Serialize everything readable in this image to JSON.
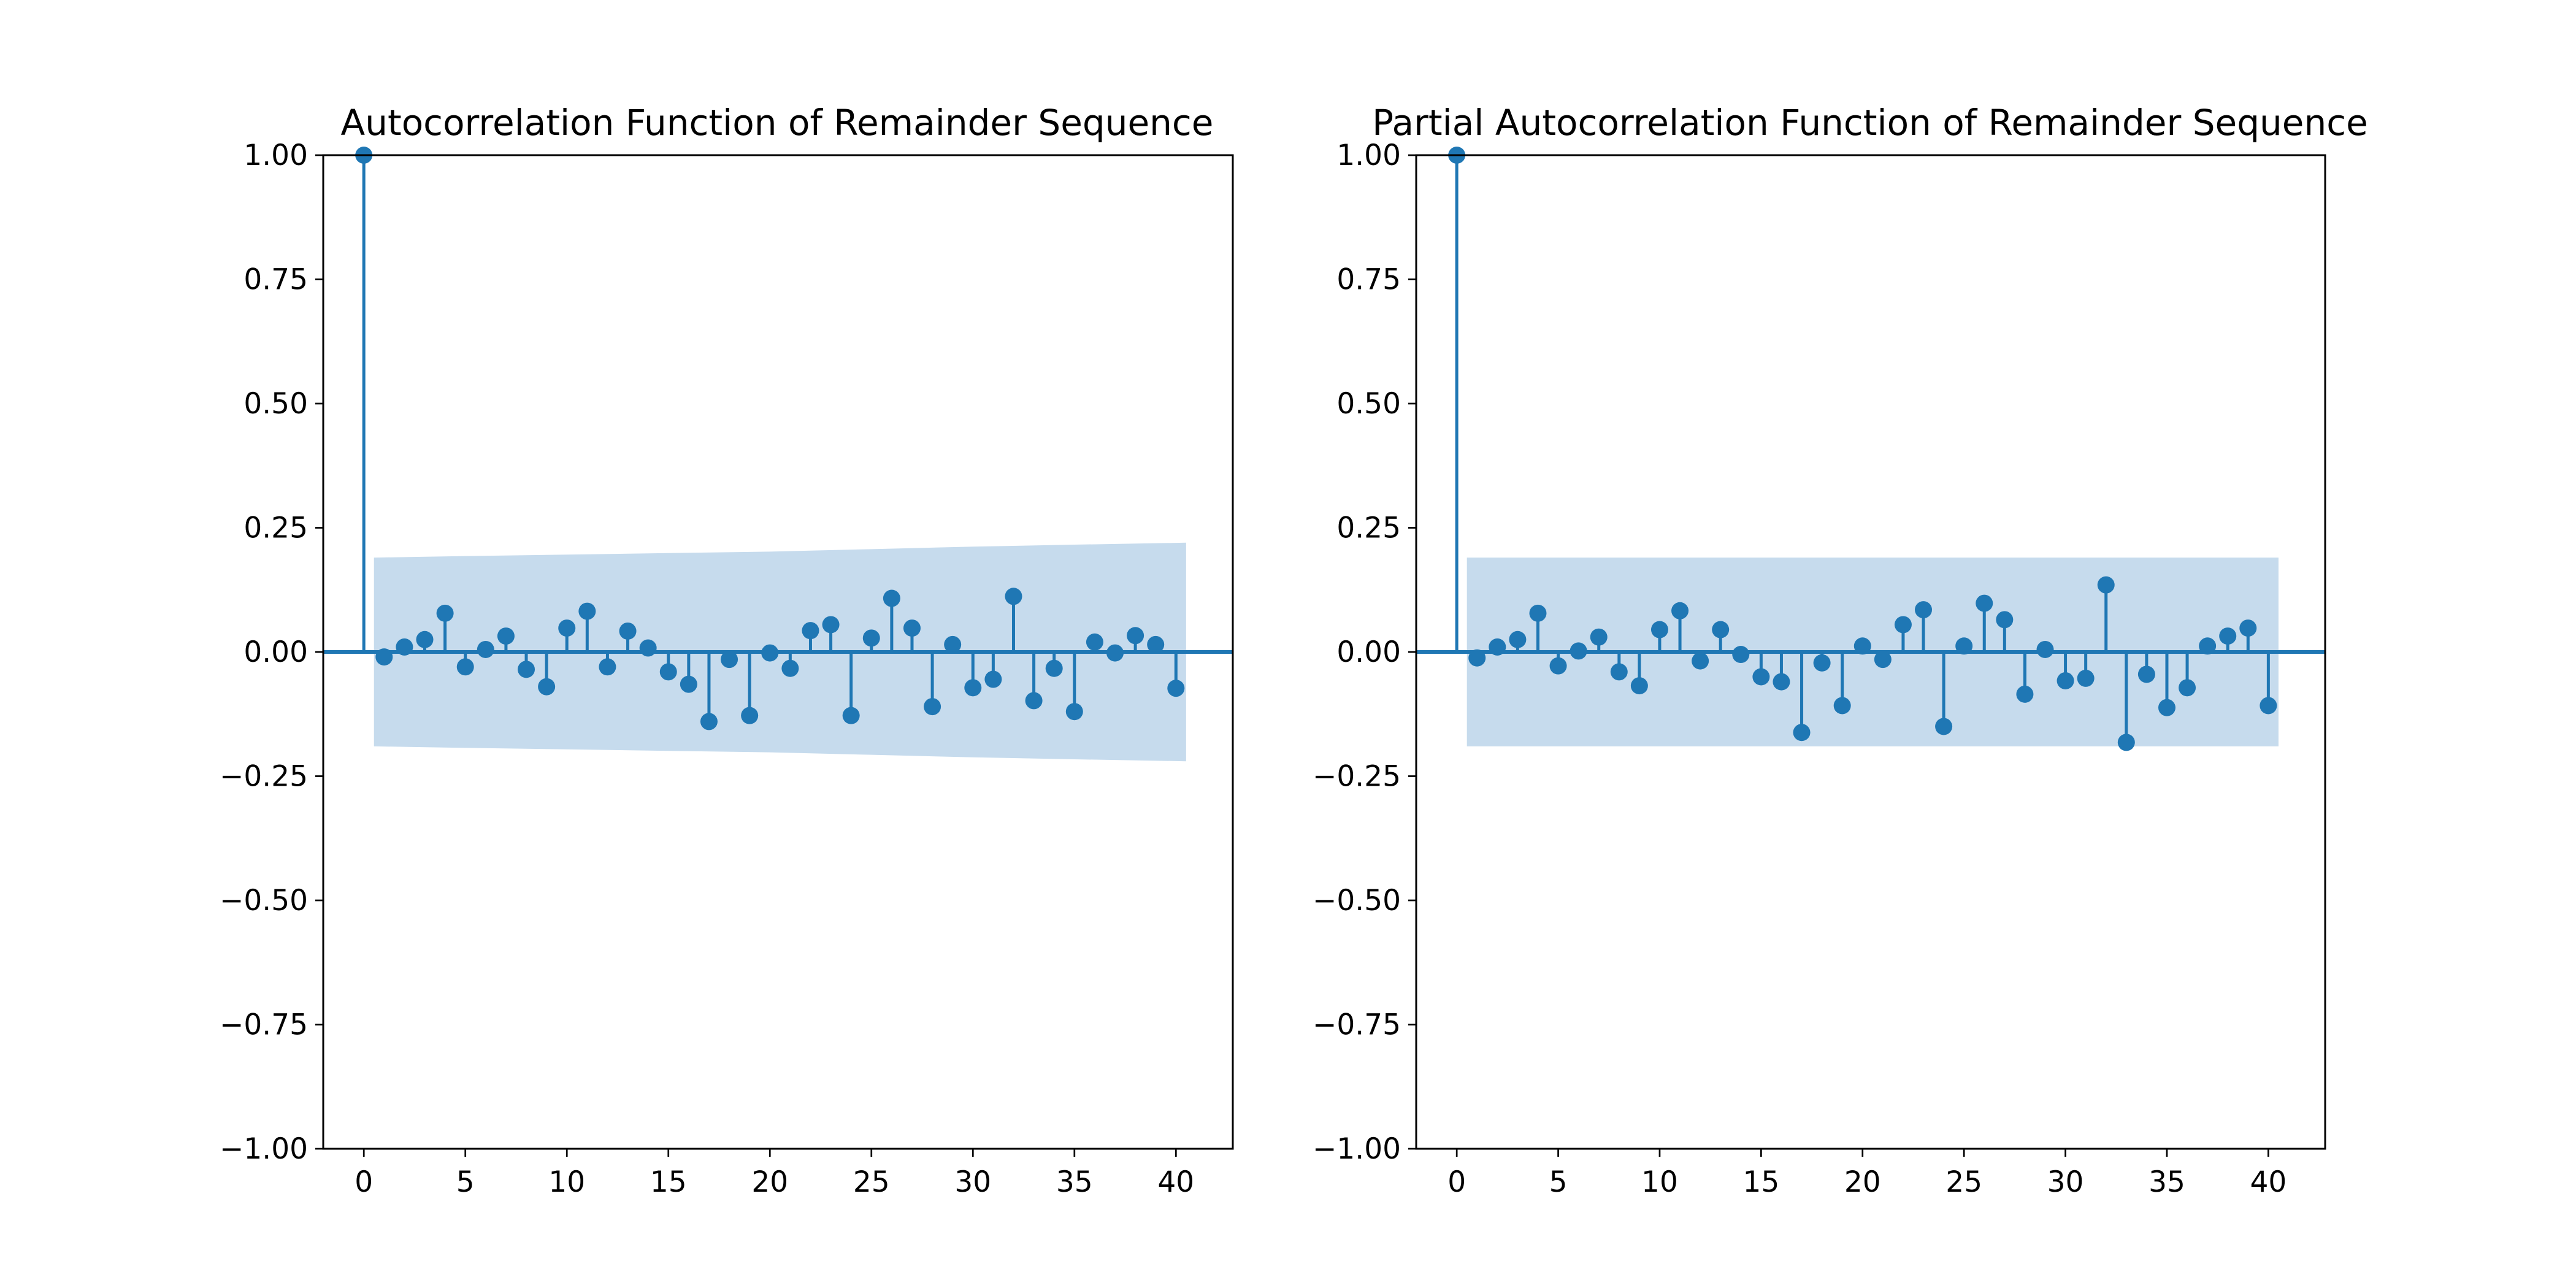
{
  "colors": {
    "series": "#1f77b4",
    "confidence_band": "#c6dbed",
    "axes": "#000000",
    "background": "#ffffff"
  },
  "chart_data": [
    {
      "type": "stem",
      "title": "Autocorrelation Function of Remainder Sequence",
      "xlabel": "",
      "ylabel": "",
      "xlim": [
        -2,
        42.8
      ],
      "ylim": [
        -1.0,
        1.0
      ],
      "x_ticks": [
        0,
        5,
        10,
        15,
        20,
        25,
        30,
        35,
        40
      ],
      "x_tick_labels": [
        "0",
        "5",
        "10",
        "15",
        "20",
        "25",
        "30",
        "35",
        "40"
      ],
      "y_ticks": [
        -1.0,
        -0.75,
        -0.5,
        -0.25,
        0.0,
        0.25,
        0.5,
        0.75,
        1.0
      ],
      "y_tick_labels": [
        "−1.00",
        "−0.75",
        "−0.50",
        "−0.25",
        "0.00",
        "0.25",
        "0.50",
        "0.75",
        "1.00"
      ],
      "grid": false,
      "lags": [
        0,
        1,
        2,
        3,
        4,
        5,
        6,
        7,
        8,
        9,
        10,
        11,
        12,
        13,
        14,
        15,
        16,
        17,
        18,
        19,
        20,
        21,
        22,
        23,
        24,
        25,
        26,
        27,
        28,
        29,
        30,
        31,
        32,
        33,
        34,
        35,
        36,
        37,
        38,
        39,
        40
      ],
      "values": [
        1.0,
        -0.01,
        0.01,
        0.025,
        0.078,
        -0.03,
        0.005,
        0.032,
        -0.035,
        -0.07,
        0.048,
        0.082,
        -0.03,
        0.042,
        0.008,
        -0.04,
        -0.065,
        -0.14,
        -0.015,
        -0.128,
        -0.002,
        -0.033,
        0.043,
        0.055,
        -0.128,
        0.028,
        0.108,
        0.048,
        -0.11,
        0.015,
        -0.072,
        -0.055,
        0.112,
        -0.098,
        -0.033,
        -0.12,
        0.02,
        -0.002,
        0.033,
        0.015,
        -0.073
      ],
      "confidence_band": {
        "lags": [
          0.5,
          5,
          10,
          15,
          20,
          25,
          30,
          35,
          40.5
        ],
        "upper": [
          0.19,
          0.193,
          0.196,
          0.199,
          0.202,
          0.207,
          0.212,
          0.216,
          0.22
        ],
        "lower": [
          -0.19,
          -0.193,
          -0.196,
          -0.199,
          -0.202,
          -0.207,
          -0.212,
          -0.216,
          -0.22
        ]
      }
    },
    {
      "type": "stem",
      "title": "Partial Autocorrelation Function of Remainder Sequence",
      "xlabel": "",
      "ylabel": "",
      "xlim": [
        -2,
        42.8
      ],
      "ylim": [
        -1.0,
        1.0
      ],
      "x_ticks": [
        0,
        5,
        10,
        15,
        20,
        25,
        30,
        35,
        40
      ],
      "x_tick_labels": [
        "0",
        "5",
        "10",
        "15",
        "20",
        "25",
        "30",
        "35",
        "40"
      ],
      "y_ticks": [
        -1.0,
        -0.75,
        -0.5,
        -0.25,
        0.0,
        0.25,
        0.5,
        0.75,
        1.0
      ],
      "y_tick_labels": [
        "−1.00",
        "−0.75",
        "−0.50",
        "−0.25",
        "0.00",
        "0.25",
        "0.50",
        "0.75",
        "1.00"
      ],
      "grid": false,
      "lags": [
        0,
        1,
        2,
        3,
        4,
        5,
        6,
        7,
        8,
        9,
        10,
        11,
        12,
        13,
        14,
        15,
        16,
        17,
        18,
        19,
        20,
        21,
        22,
        23,
        24,
        25,
        26,
        27,
        28,
        29,
        30,
        31,
        32,
        33,
        34,
        35,
        36,
        37,
        38,
        39,
        40
      ],
      "values": [
        1.0,
        -0.012,
        0.01,
        0.025,
        0.078,
        -0.028,
        0.002,
        0.03,
        -0.04,
        -0.068,
        0.045,
        0.083,
        -0.018,
        0.045,
        -0.005,
        -0.05,
        -0.06,
        -0.162,
        -0.022,
        -0.108,
        0.012,
        -0.015,
        0.055,
        0.085,
        -0.15,
        0.012,
        0.098,
        0.065,
        -0.085,
        0.005,
        -0.058,
        -0.053,
        0.135,
        -0.182,
        -0.045,
        -0.112,
        -0.072,
        0.012,
        0.032,
        0.048,
        -0.108
      ],
      "confidence_band": {
        "lags": [
          0.5,
          40.5
        ],
        "upper": [
          0.19,
          0.19
        ],
        "lower": [
          -0.19,
          -0.19
        ]
      }
    }
  ]
}
